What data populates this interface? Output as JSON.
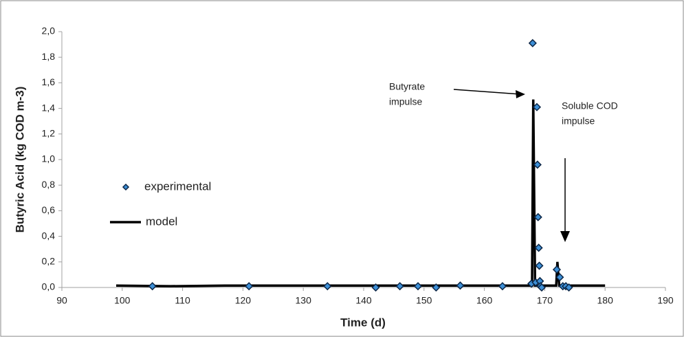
{
  "chart_data": {
    "type": "scatter",
    "xlabel": "Time (d)",
    "ylabel": "Butyric Acid (kg COD m-3)",
    "xlim": [
      90,
      190
    ],
    "ylim": [
      0,
      2
    ],
    "xticks": [
      90,
      100,
      110,
      120,
      130,
      140,
      150,
      160,
      170,
      180,
      190
    ],
    "yticks": [
      {
        "value": 0,
        "label": "0,0"
      },
      {
        "value": 0.2,
        "label": "0,2"
      },
      {
        "value": 0.4,
        "label": "0,4"
      },
      {
        "value": 0.6,
        "label": "0,6"
      },
      {
        "value": 0.8,
        "label": "0,8"
      },
      {
        "value": 1.0,
        "label": "1,0"
      },
      {
        "value": 1.2,
        "label": "1,2"
      },
      {
        "value": 1.4,
        "label": "1,4"
      },
      {
        "value": 1.6,
        "label": "1,6"
      },
      {
        "value": 1.8,
        "label": "1,8"
      },
      {
        "value": 2.0,
        "label": "2,0"
      }
    ],
    "grid": false,
    "legend": "center left",
    "annotations": [
      [
        "Butyrate",
        "impulse"
      ],
      [
        "Soluble COD",
        "impulse"
      ]
    ],
    "series": [
      {
        "name": "experimental",
        "style": "marker",
        "color": "#3d8fd6",
        "x": [
          105,
          121,
          134,
          142,
          146,
          149,
          152,
          156,
          163,
          167.8,
          168,
          168.5,
          168.7,
          168.8,
          168.9,
          169,
          169.1,
          169.2,
          169.3,
          169.5,
          172,
          172.5,
          173,
          173.5,
          174
        ],
        "values": [
          0.01,
          0.01,
          0.01,
          0.0,
          0.01,
          0.01,
          0.0,
          0.015,
          0.01,
          0.03,
          1.91,
          0.04,
          1.41,
          0.96,
          0.55,
          0.31,
          0.17,
          0.05,
          0.01,
          0.0,
          0.14,
          0.08,
          0.01,
          0.01,
          0.0
        ]
      },
      {
        "name": "model",
        "style": "line",
        "color": "#000000",
        "x": [
          99,
          108,
          117,
          167.9,
          168.1,
          168.4,
          171.9,
          172.1,
          172.4,
          180
        ],
        "values": [
          0.015,
          0.01,
          0.015,
          0.015,
          1.47,
          0.015,
          0.015,
          0.2,
          0.015,
          0.015
        ]
      }
    ]
  }
}
